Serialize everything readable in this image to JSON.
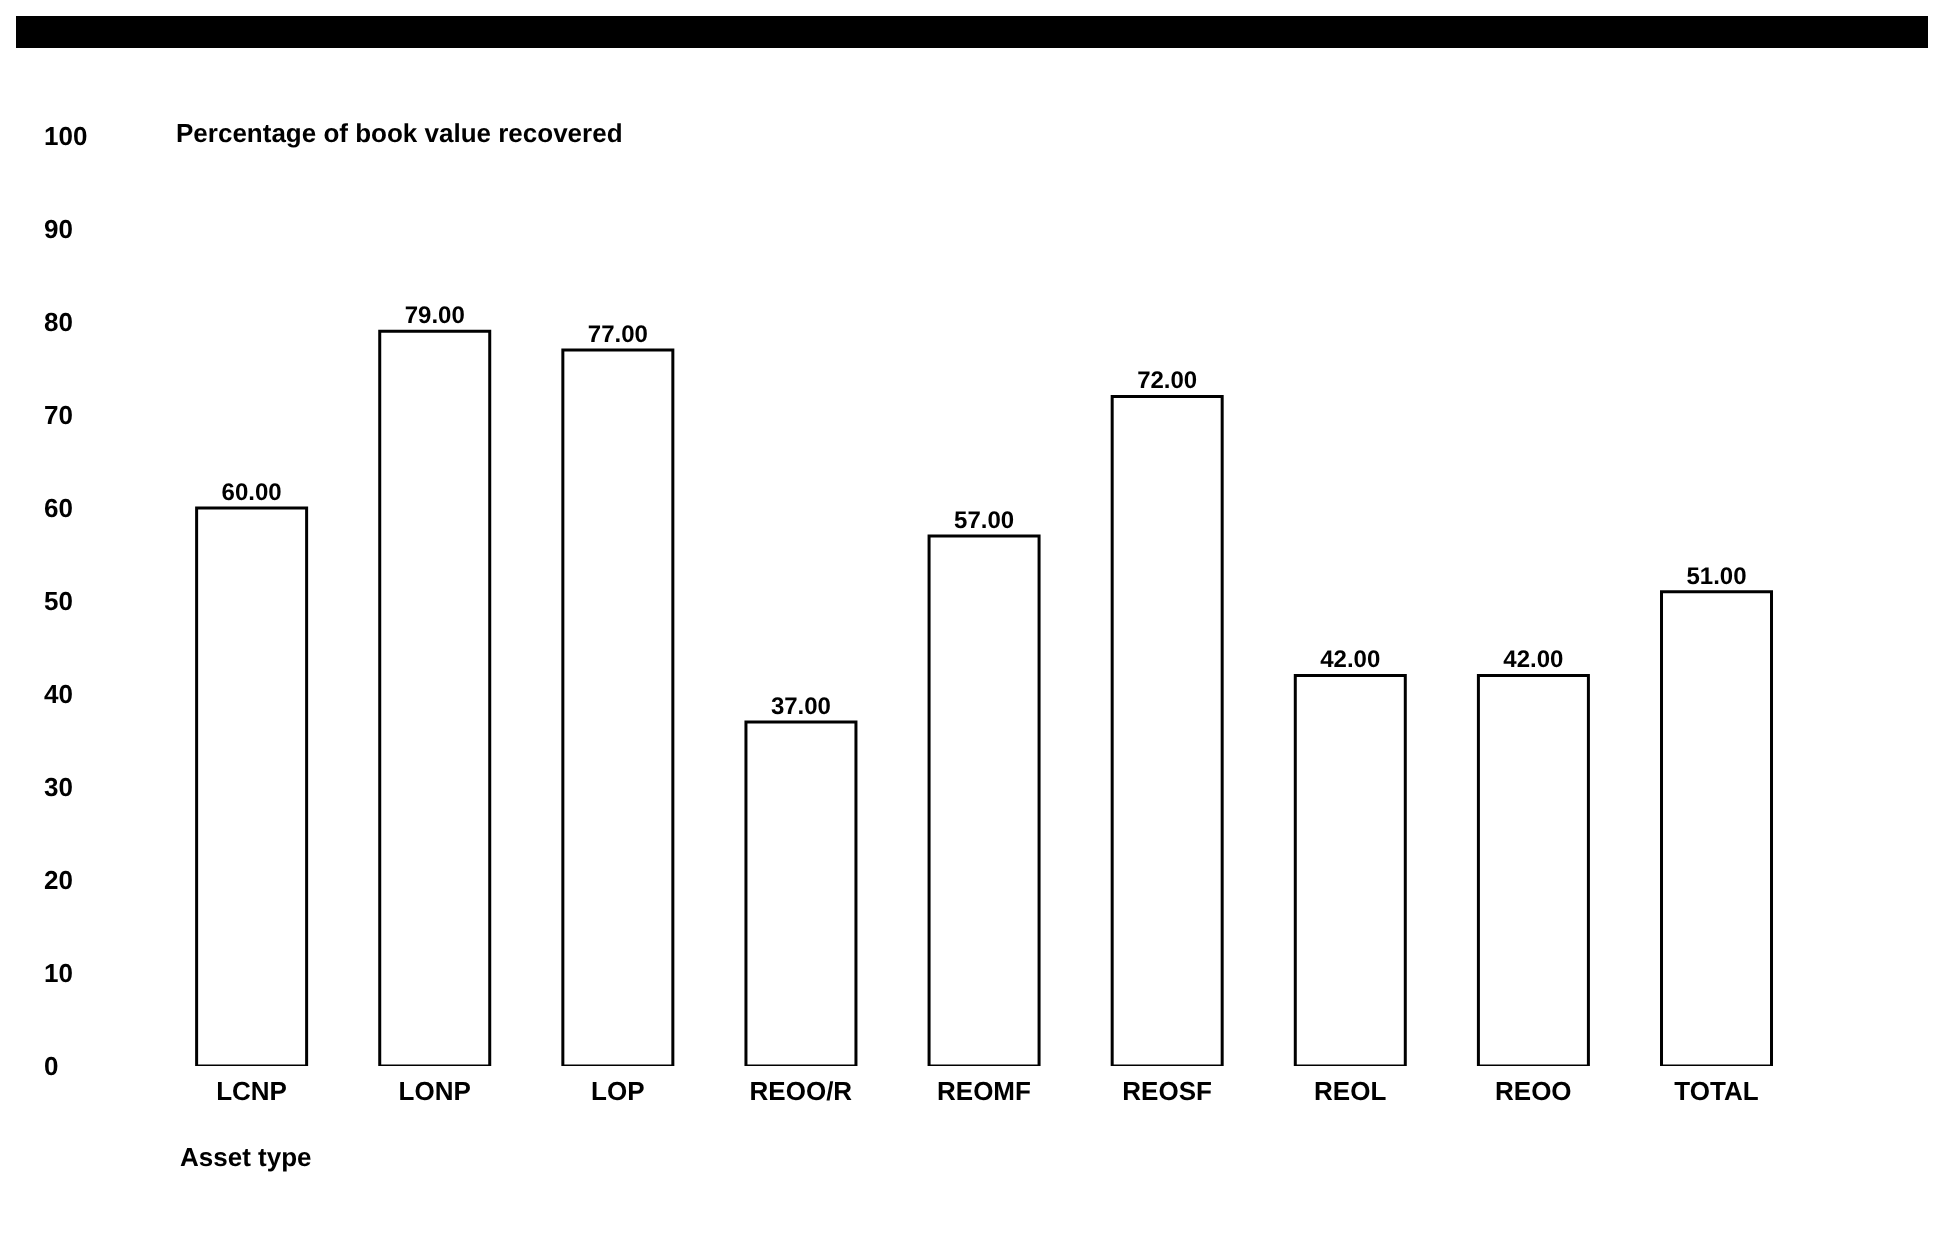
{
  "chart_data": {
    "type": "bar",
    "ylabel": "Percentage of book value recovered",
    "xlabel": "Asset type",
    "categories": [
      "LCNP",
      "LONP",
      "LOP",
      "REOO/R",
      "REOMF",
      "REOSF",
      "REOL",
      "REOO",
      "TOTAL"
    ],
    "values": [
      60,
      79,
      77,
      37,
      57,
      72,
      42,
      42,
      51
    ],
    "value_labels": [
      "60.00",
      "79.00",
      "77.00",
      "37.00",
      "57.00",
      "72.00",
      "42.00",
      "42.00",
      "51.00"
    ],
    "color": "#ffffff",
    "ylim": [
      0,
      100
    ],
    "yticks": [
      0,
      10,
      20,
      30,
      40,
      50,
      60,
      70,
      80,
      90,
      100
    ],
    "grid": false,
    "legend": false
  }
}
